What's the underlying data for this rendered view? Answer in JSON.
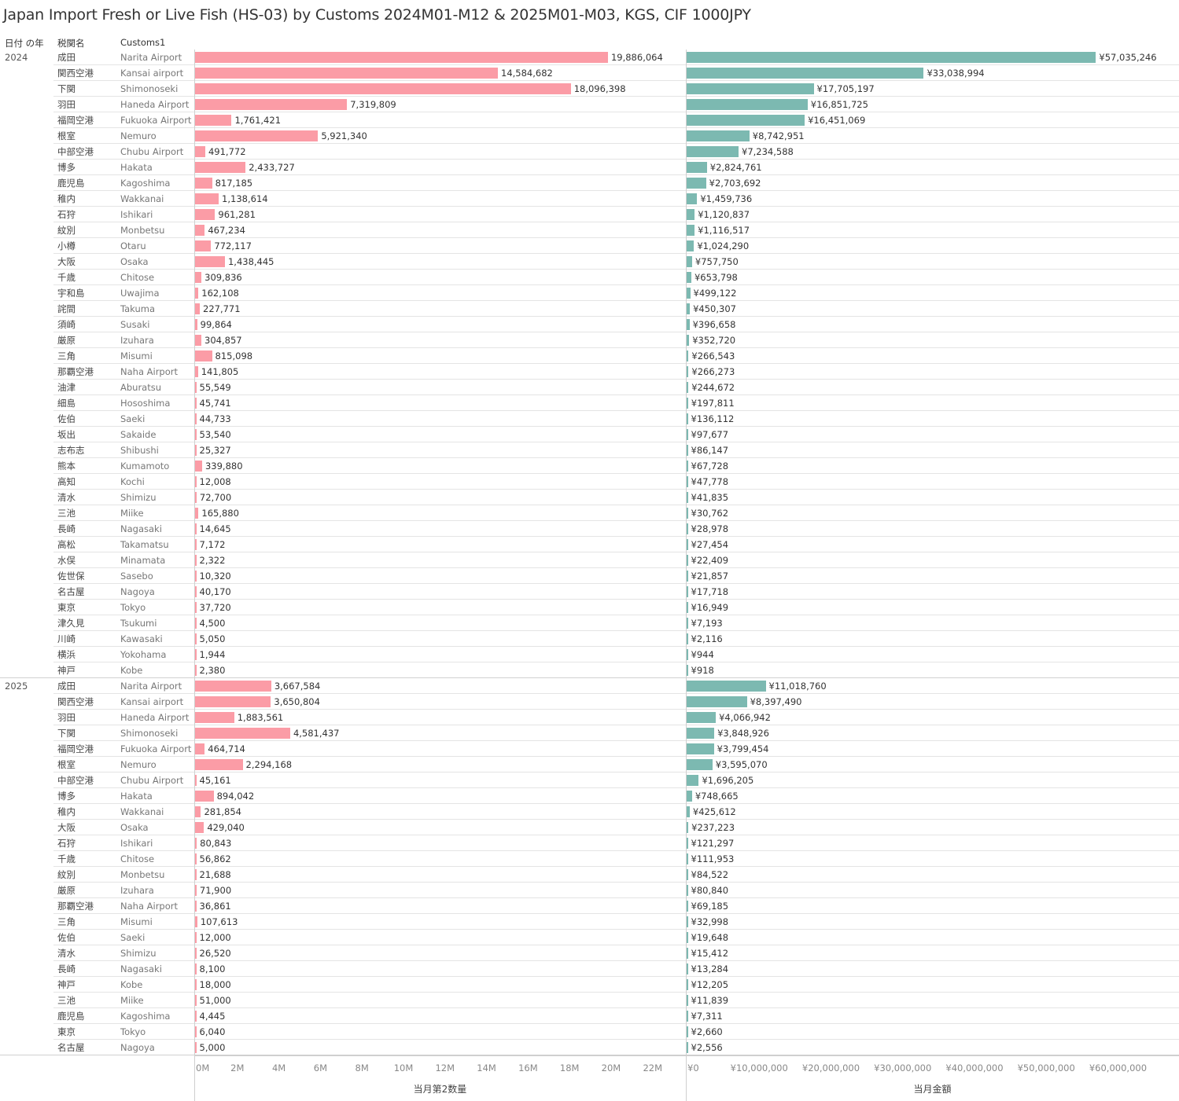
{
  "title": "Japan Import Fresh or Live Fish (HS-03) by Customs 2024M01-M12 & 2025M01-M03, KGS, CIF 1000JPY",
  "headers": {
    "year": "日付 の年",
    "jp": "税関名",
    "en": "Customs1"
  },
  "colors": {
    "quantity_bar": "#fb9ca6",
    "value_bar": "#7cb9b1"
  },
  "chart_data": [
    {
      "type": "bar",
      "orientation": "horizontal",
      "xlabel": "当月第2数量",
      "xlim": [
        0,
        23600000
      ],
      "ticks": [
        0,
        2000000,
        4000000,
        6000000,
        8000000,
        10000000,
        12000000,
        14000000,
        16000000,
        18000000,
        20000000,
        22000000
      ],
      "tick_labels": [
        "0M",
        "2M",
        "4M",
        "6M",
        "8M",
        "10M",
        "12M",
        "14M",
        "16M",
        "18M",
        "20M",
        "22M"
      ],
      "values_key": "groups.rows.q"
    },
    {
      "type": "bar",
      "orientation": "horizontal",
      "xlabel": "当月金額",
      "xlim": [
        0,
        68500000
      ],
      "ticks": [
        0,
        10000000,
        20000000,
        30000000,
        40000000,
        50000000,
        60000000
      ],
      "tick_labels": [
        "¥0",
        "¥10,000,000",
        "¥20,000,000",
        "¥30,000,000",
        "¥40,000,000",
        "¥50,000,000",
        "¥60,000,000"
      ],
      "values_key": "groups.rows.v"
    }
  ],
  "groups": [
    {
      "year": "2024",
      "rows": [
        {
          "jp": "成田",
          "en": "Narita Airport",
          "q": 19886064,
          "v": 57035246
        },
        {
          "jp": "関西空港",
          "en": "Kansai airport",
          "q": 14584682,
          "v": 33038994
        },
        {
          "jp": "下関",
          "en": "Shimonoseki",
          "q": 18096398,
          "v": 17705197
        },
        {
          "jp": "羽田",
          "en": "Haneda Airport",
          "q": 7319809,
          "v": 16851725
        },
        {
          "jp": "福岡空港",
          "en": "Fukuoka Airport",
          "q": 1761421,
          "v": 16451069
        },
        {
          "jp": "根室",
          "en": "Nemuro",
          "q": 5921340,
          "v": 8742951
        },
        {
          "jp": "中部空港",
          "en": "Chubu Airport",
          "q": 491772,
          "v": 7234588
        },
        {
          "jp": "博多",
          "en": "Hakata",
          "q": 2433727,
          "v": 2824761
        },
        {
          "jp": "鹿児島",
          "en": "Kagoshima",
          "q": 817185,
          "v": 2703692
        },
        {
          "jp": "稚内",
          "en": "Wakkanai",
          "q": 1138614,
          "v": 1459736
        },
        {
          "jp": "石狩",
          "en": "Ishikari",
          "q": 961281,
          "v": 1120837
        },
        {
          "jp": "紋別",
          "en": "Monbetsu",
          "q": 467234,
          "v": 1116517
        },
        {
          "jp": "小樽",
          "en": "Otaru",
          "q": 772117,
          "v": 1024290
        },
        {
          "jp": "大阪",
          "en": "Osaka",
          "q": 1438445,
          "v": 757750
        },
        {
          "jp": "千歳",
          "en": "Chitose",
          "q": 309836,
          "v": 653798
        },
        {
          "jp": "宇和島",
          "en": "Uwajima",
          "q": 162108,
          "v": 499122
        },
        {
          "jp": "詫間",
          "en": "Takuma",
          "q": 227771,
          "v": 450307
        },
        {
          "jp": "須崎",
          "en": "Susaki",
          "q": 99864,
          "v": 396658
        },
        {
          "jp": "厳原",
          "en": "Izuhara",
          "q": 304857,
          "v": 352720
        },
        {
          "jp": "三角",
          "en": "Misumi",
          "q": 815098,
          "v": 266543
        },
        {
          "jp": "那覇空港",
          "en": "Naha Airport",
          "q": 141805,
          "v": 266273
        },
        {
          "jp": "油津",
          "en": "Aburatsu",
          "q": 55549,
          "v": 244672
        },
        {
          "jp": "細島",
          "en": "Hososhima",
          "q": 45741,
          "v": 197811
        },
        {
          "jp": "佐伯",
          "en": "Saeki",
          "q": 44733,
          "v": 136112
        },
        {
          "jp": "坂出",
          "en": "Sakaide",
          "q": 53540,
          "v": 97677
        },
        {
          "jp": "志布志",
          "en": "Shibushi",
          "q": 25327,
          "v": 86147
        },
        {
          "jp": "熊本",
          "en": "Kumamoto",
          "q": 339880,
          "v": 67728
        },
        {
          "jp": "高知",
          "en": "Kochi",
          "q": 12008,
          "v": 47778
        },
        {
          "jp": "清水",
          "en": "Shimizu",
          "q": 72700,
          "v": 41835
        },
        {
          "jp": "三池",
          "en": "Miike",
          "q": 165880,
          "v": 30762
        },
        {
          "jp": "長崎",
          "en": "Nagasaki",
          "q": 14645,
          "v": 28978
        },
        {
          "jp": "高松",
          "en": "Takamatsu",
          "q": 7172,
          "v": 27454
        },
        {
          "jp": "水俣",
          "en": "Minamata",
          "q": 2322,
          "v": 22409
        },
        {
          "jp": "佐世保",
          "en": "Sasebo",
          "q": 10320,
          "v": 21857
        },
        {
          "jp": "名古屋",
          "en": "Nagoya",
          "q": 40170,
          "v": 17718
        },
        {
          "jp": "東京",
          "en": "Tokyo",
          "q": 37720,
          "v": 16949
        },
        {
          "jp": "津久見",
          "en": "Tsukumi",
          "q": 4500,
          "v": 7193
        },
        {
          "jp": "川崎",
          "en": "Kawasaki",
          "q": 5050,
          "v": 2116
        },
        {
          "jp": "横浜",
          "en": "Yokohama",
          "q": 1944,
          "v": 944
        },
        {
          "jp": "神戸",
          "en": "Kobe",
          "q": 2380,
          "v": 918
        }
      ]
    },
    {
      "year": "2025",
      "rows": [
        {
          "jp": "成田",
          "en": "Narita Airport",
          "q": 3667584,
          "v": 11018760
        },
        {
          "jp": "関西空港",
          "en": "Kansai airport",
          "q": 3650804,
          "v": 8397490
        },
        {
          "jp": "羽田",
          "en": "Haneda Airport",
          "q": 1883561,
          "v": 4066942
        },
        {
          "jp": "下関",
          "en": "Shimonoseki",
          "q": 4581437,
          "v": 3848926
        },
        {
          "jp": "福岡空港",
          "en": "Fukuoka Airport",
          "q": 464714,
          "v": 3799454
        },
        {
          "jp": "根室",
          "en": "Nemuro",
          "q": 2294168,
          "v": 3595070
        },
        {
          "jp": "中部空港",
          "en": "Chubu Airport",
          "q": 45161,
          "v": 1696205
        },
        {
          "jp": "博多",
          "en": "Hakata",
          "q": 894042,
          "v": 748665
        },
        {
          "jp": "稚内",
          "en": "Wakkanai",
          "q": 281854,
          "v": 425612
        },
        {
          "jp": "大阪",
          "en": "Osaka",
          "q": 429040,
          "v": 237223
        },
        {
          "jp": "石狩",
          "en": "Ishikari",
          "q": 80843,
          "v": 121297
        },
        {
          "jp": "千歳",
          "en": "Chitose",
          "q": 56862,
          "v": 111953
        },
        {
          "jp": "紋別",
          "en": "Monbetsu",
          "q": 21688,
          "v": 84522
        },
        {
          "jp": "厳原",
          "en": "Izuhara",
          "q": 71900,
          "v": 80840
        },
        {
          "jp": "那覇空港",
          "en": "Naha Airport",
          "q": 36861,
          "v": 69185
        },
        {
          "jp": "三角",
          "en": "Misumi",
          "q": 107613,
          "v": 32998
        },
        {
          "jp": "佐伯",
          "en": "Saeki",
          "q": 12000,
          "v": 19648
        },
        {
          "jp": "清水",
          "en": "Shimizu",
          "q": 26520,
          "v": 15412
        },
        {
          "jp": "長崎",
          "en": "Nagasaki",
          "q": 8100,
          "v": 13284
        },
        {
          "jp": "神戸",
          "en": "Kobe",
          "q": 18000,
          "v": 12205
        },
        {
          "jp": "三池",
          "en": "Miike",
          "q": 51000,
          "v": 11839
        },
        {
          "jp": "鹿児島",
          "en": "Kagoshima",
          "q": 4445,
          "v": 7311
        },
        {
          "jp": "東京",
          "en": "Tokyo",
          "q": 6040,
          "v": 2660
        },
        {
          "jp": "名古屋",
          "en": "Nagoya",
          "q": 5000,
          "v": 2556
        }
      ]
    }
  ]
}
